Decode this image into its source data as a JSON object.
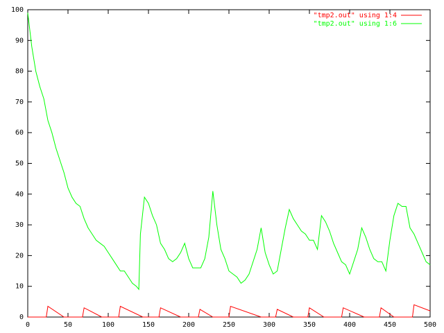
{
  "chart_data": {
    "type": "line",
    "xlim": [
      0,
      500
    ],
    "ylim": [
      0,
      100
    ],
    "xticks": [
      0,
      50,
      100,
      150,
      200,
      250,
      300,
      350,
      400,
      450,
      500
    ],
    "yticks": [
      0,
      10,
      20,
      30,
      40,
      50,
      60,
      70,
      80,
      90,
      100
    ],
    "grid": false,
    "legend": "top-right",
    "series": [
      {
        "name": "\"tmp2.out\" using 1:4",
        "color": "#ff0000",
        "x": [
          0,
          23,
          25,
          45,
          68,
          70,
          92,
          113,
          115,
          143,
          163,
          165,
          190,
          212,
          214,
          230,
          250,
          252,
          290,
          308,
          310,
          330,
          348,
          350,
          368,
          390,
          392,
          418,
          437,
          439,
          455,
          478,
          480,
          500
        ],
        "values": [
          0,
          0,
          3.5,
          0,
          0,
          3,
          0,
          0,
          3.5,
          0,
          0,
          3,
          0,
          0,
          2.5,
          0,
          0,
          3.5,
          0,
          0,
          2.5,
          0,
          0,
          3,
          0,
          0,
          3,
          0,
          0,
          3,
          0,
          0,
          4,
          2
        ]
      },
      {
        "name": "\"tmp2.out\" using 1:6",
        "color": "#00ff00",
        "x": [
          0,
          5,
          10,
          15,
          20,
          25,
          30,
          35,
          40,
          45,
          50,
          55,
          60,
          65,
          70,
          75,
          80,
          85,
          90,
          95,
          100,
          105,
          110,
          115,
          120,
          125,
          130,
          135,
          138,
          140,
          145,
          150,
          155,
          160,
          165,
          170,
          175,
          180,
          185,
          190,
          195,
          200,
          205,
          210,
          215,
          220,
          225,
          230,
          235,
          240,
          245,
          250,
          255,
          260,
          265,
          270,
          275,
          280,
          285,
          290,
          295,
          300,
          305,
          310,
          315,
          320,
          325,
          330,
          335,
          340,
          345,
          350,
          355,
          360,
          365,
          370,
          375,
          380,
          385,
          390,
          395,
          400,
          405,
          410,
          415,
          420,
          425,
          430,
          435,
          440,
          445,
          450,
          455,
          460,
          465,
          470,
          475,
          480,
          485,
          490,
          495,
          500
        ],
        "values": [
          99,
          88,
          80,
          75,
          71,
          64,
          60,
          55,
          51,
          47,
          42,
          39,
          37,
          36,
          32,
          29,
          27,
          25,
          24,
          23,
          21,
          19,
          17,
          15,
          15,
          13,
          11,
          10,
          9,
          27,
          39,
          37,
          33,
          30,
          24,
          22,
          19,
          18,
          19,
          21,
          24,
          19,
          16,
          16,
          16,
          19,
          26,
          41,
          30,
          22,
          19,
          15,
          14,
          13,
          11,
          12,
          14,
          18,
          22,
          29,
          21,
          17,
          14,
          15,
          22,
          29,
          35,
          32,
          30,
          28,
          27,
          25,
          25,
          22,
          33,
          31,
          28,
          24,
          21,
          18,
          17,
          14,
          18,
          22,
          29,
          26,
          22,
          19,
          18,
          18,
          15,
          25,
          33,
          37,
          36,
          36,
          29,
          27,
          24,
          21,
          18,
          17
        ]
      }
    ]
  }
}
